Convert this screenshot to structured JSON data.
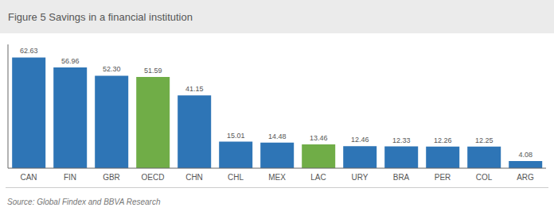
{
  "chart_data": {
    "type": "bar",
    "title": "Figure 5 Savings in a financial institution",
    "source": "Source: Global Findex and BBVA Research",
    "categories": [
      "CAN",
      "FIN",
      "GBR",
      "OECD",
      "CHN",
      "CHL",
      "MEX",
      "LAC",
      "URY",
      "BRA",
      "PER",
      "COL",
      "ARG"
    ],
    "values": [
      62.63,
      56.96,
      52.3,
      51.59,
      41.15,
      15.01,
      14.48,
      13.46,
      12.46,
      12.33,
      12.26,
      12.25,
      4.08
    ],
    "value_labels": [
      "62.63",
      "56.96",
      "52.30",
      "51.59",
      "41.15",
      "15.01",
      "14.48",
      "13.46",
      "12.46",
      "12.33",
      "12.26",
      "12.25",
      "4.08"
    ],
    "colors": [
      "#2e75b6",
      "#2e75b6",
      "#2e75b6",
      "#70ad47",
      "#2e75b6",
      "#2e75b6",
      "#2e75b6",
      "#70ad47",
      "#2e75b6",
      "#2e75b6",
      "#2e75b6",
      "#2e75b6",
      "#2e75b6"
    ],
    "ylim": [
      0,
      70
    ],
    "data_labels": true,
    "tick_labels": "x",
    "grid": false
  }
}
